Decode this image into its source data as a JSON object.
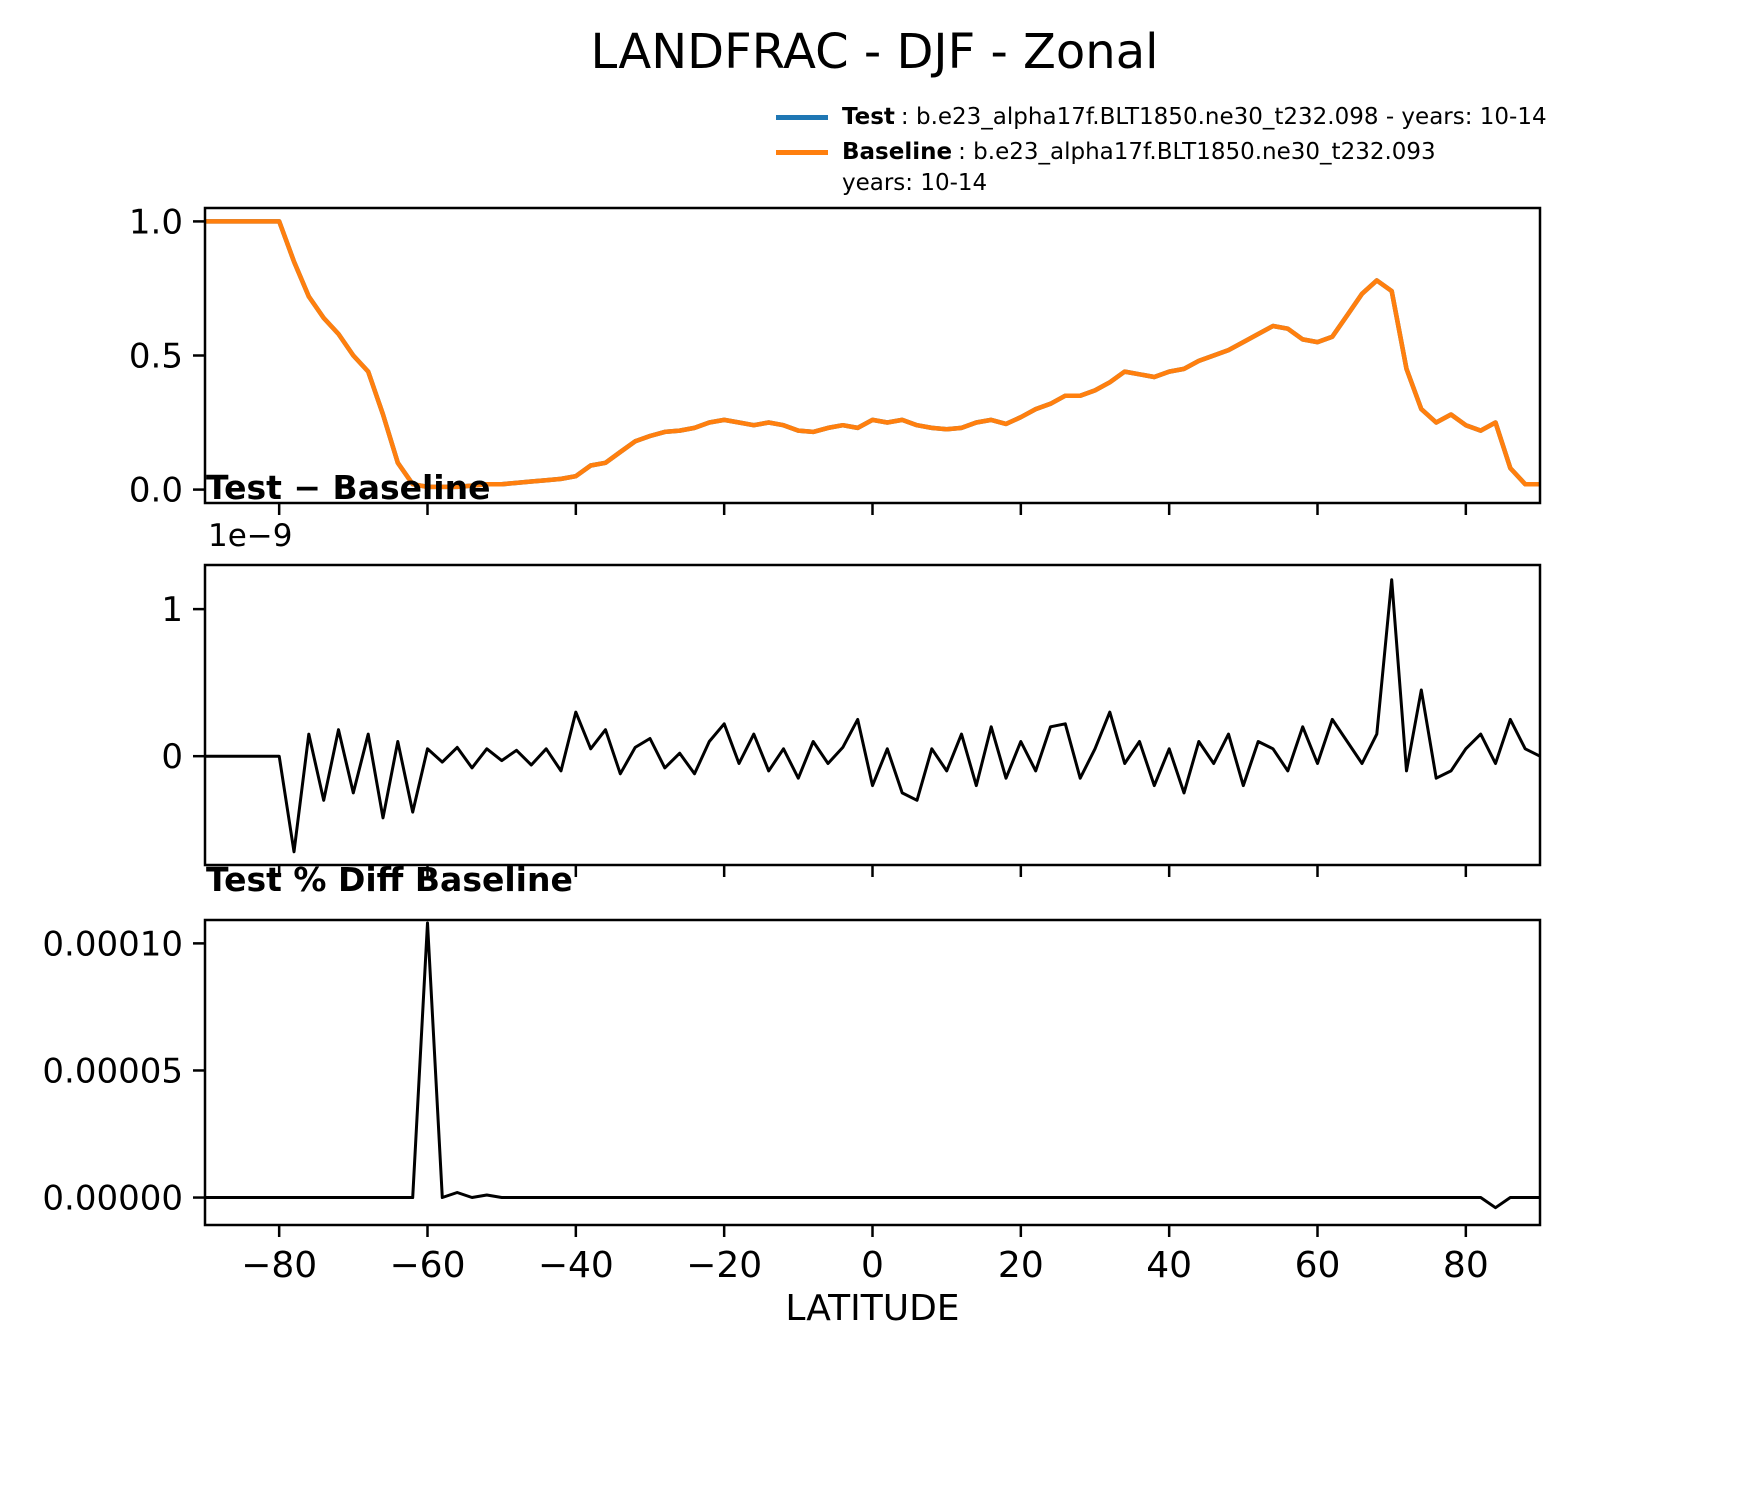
{
  "page": {
    "title": "LANDFRAC - DJF - Zonal"
  },
  "legend": {
    "entries": [
      {
        "name": "Test",
        "text": ": b.e23_alpha17f.BLT1850.ne30_t232.098 - years: 10-14",
        "color": "#1f77b4"
      },
      {
        "name": "Baseline",
        "text": ": b.e23_alpha17f.BLT1850.ne30_t232.093",
        "text2": "years: 10-14",
        "color": "#ff7f0e"
      }
    ]
  },
  "axis": {
    "xlabel": "LATITUDE",
    "xlim": [
      -90,
      90
    ],
    "xticks": [
      -80,
      -60,
      -40,
      -20,
      0,
      20,
      40,
      60,
      80
    ],
    "xtick_labels": [
      "−80",
      "−60",
      "−40",
      "−20",
      "0",
      "20",
      "40",
      "60",
      "80"
    ]
  },
  "chart_data": [
    {
      "id": "zonal-mean",
      "type": "line",
      "title": "",
      "ylim": [
        -0.05,
        1.05
      ],
      "yticks": [
        0,
        0.5,
        1
      ],
      "ytick_labels": [
        "0.0",
        "0.5",
        "1.0"
      ],
      "lat": [
        -90,
        -88,
        -86,
        -84,
        -82,
        -80,
        -78,
        -76,
        -74,
        -72,
        -70,
        -68,
        -66,
        -64,
        -62,
        -60,
        -58,
        -56,
        -54,
        -52,
        -50,
        -48,
        -46,
        -44,
        -42,
        -40,
        -38,
        -36,
        -34,
        -32,
        -30,
        -28,
        -26,
        -24,
        -22,
        -20,
        -18,
        -16,
        -14,
        -12,
        -10,
        -8,
        -6,
        -4,
        -2,
        0,
        2,
        4,
        6,
        8,
        10,
        12,
        14,
        16,
        18,
        20,
        22,
        24,
        26,
        28,
        30,
        32,
        34,
        36,
        38,
        40,
        42,
        44,
        46,
        48,
        50,
        52,
        54,
        56,
        58,
        60,
        62,
        64,
        66,
        68,
        70,
        72,
        74,
        76,
        78,
        80,
        82,
        84,
        86,
        88,
        90
      ],
      "values": [
        1.0,
        1.0,
        1.0,
        1.0,
        1.0,
        1.0,
        0.85,
        0.72,
        0.64,
        0.58,
        0.5,
        0.44,
        0.28,
        0.1,
        0.02,
        0.01,
        0.01,
        0.01,
        0.015,
        0.02,
        0.02,
        0.025,
        0.03,
        0.035,
        0.04,
        0.05,
        0.09,
        0.1,
        0.14,
        0.18,
        0.2,
        0.215,
        0.22,
        0.23,
        0.25,
        0.26,
        0.25,
        0.24,
        0.25,
        0.24,
        0.22,
        0.215,
        0.23,
        0.24,
        0.23,
        0.26,
        0.25,
        0.26,
        0.24,
        0.23,
        0.225,
        0.23,
        0.25,
        0.26,
        0.245,
        0.27,
        0.3,
        0.32,
        0.35,
        0.35,
        0.37,
        0.4,
        0.44,
        0.43,
        0.42,
        0.44,
        0.45,
        0.48,
        0.5,
        0.52,
        0.55,
        0.58,
        0.61,
        0.6,
        0.56,
        0.55,
        0.57,
        0.65,
        0.73,
        0.78,
        0.74,
        0.45,
        0.3,
        0.25,
        0.28,
        0.24,
        0.22,
        0.25,
        0.08,
        0.02,
        0.02
      ],
      "series": [
        {
          "name": "Test",
          "color": "#1f77b4",
          "linewidth": 4.5
        },
        {
          "name": "Baseline",
          "color": "#ff7f0e",
          "linewidth": 4.5
        }
      ]
    },
    {
      "id": "test-minus-baseline",
      "type": "line",
      "title": "Test − Baseline",
      "offset_label": "1e−9",
      "units_scale": 1e-09,
      "ylim": [
        -0.74,
        1.3
      ],
      "yticks": [
        0,
        1
      ],
      "ytick_labels": [
        "0",
        "1"
      ],
      "lat": [
        -90,
        -88,
        -86,
        -84,
        -82,
        -80,
        -78,
        -76,
        -74,
        -72,
        -70,
        -68,
        -66,
        -64,
        -62,
        -60,
        -58,
        -56,
        -54,
        -52,
        -50,
        -48,
        -46,
        -44,
        -42,
        -40,
        -38,
        -36,
        -34,
        -32,
        -30,
        -28,
        -26,
        -24,
        -22,
        -20,
        -18,
        -16,
        -14,
        -12,
        -10,
        -8,
        -6,
        -4,
        -2,
        0,
        2,
        4,
        6,
        8,
        10,
        12,
        14,
        16,
        18,
        20,
        22,
        24,
        26,
        28,
        30,
        32,
        34,
        36,
        38,
        40,
        42,
        44,
        46,
        48,
        50,
        52,
        54,
        56,
        58,
        60,
        62,
        64,
        66,
        68,
        70,
        72,
        74,
        76,
        78,
        80,
        82,
        84,
        86,
        88,
        90
      ],
      "values": [
        0,
        0,
        0,
        0,
        0,
        0,
        -0.65,
        0.15,
        -0.3,
        0.18,
        -0.25,
        0.15,
        -0.42,
        0.1,
        -0.38,
        0.05,
        -0.04,
        0.06,
        -0.08,
        0.05,
        -0.03,
        0.04,
        -0.06,
        0.05,
        -0.1,
        0.3,
        0.05,
        0.18,
        -0.12,
        0.06,
        0.12,
        -0.08,
        0.02,
        -0.12,
        0.1,
        0.22,
        -0.05,
        0.15,
        -0.1,
        0.05,
        -0.15,
        0.1,
        -0.05,
        0.06,
        0.25,
        -0.2,
        0.05,
        -0.25,
        -0.3,
        0.05,
        -0.1,
        0.15,
        -0.2,
        0.2,
        -0.15,
        0.1,
        -0.1,
        0.2,
        0.22,
        -0.15,
        0.05,
        0.3,
        -0.05,
        0.1,
        -0.2,
        0.05,
        -0.25,
        0.1,
        -0.05,
        0.15,
        -0.2,
        0.1,
        0.05,
        -0.1,
        0.2,
        -0.05,
        0.25,
        0.1,
        -0.05,
        0.15,
        1.2,
        -0.1,
        0.45,
        -0.15,
        -0.1,
        0.05,
        0.15,
        -0.05,
        0.25,
        0.05,
        0
      ],
      "series": [
        {
          "name": "Test minus Baseline",
          "color": "#000000",
          "linewidth": 3
        }
      ]
    },
    {
      "id": "test-pct-diff-baseline",
      "type": "line",
      "title": "Test % Diff Baseline",
      "ylim": [
        -1.08e-05,
        0.0001092
      ],
      "yticks": [
        0,
        5e-05,
        0.0001
      ],
      "ytick_labels": [
        "0.00000",
        "0.00005",
        "0.00010"
      ],
      "lat": [
        -90,
        -88,
        -86,
        -84,
        -82,
        -80,
        -78,
        -76,
        -74,
        -72,
        -70,
        -68,
        -66,
        -64,
        -62,
        -60,
        -58,
        -56,
        -54,
        -52,
        -50,
        -48,
        -46,
        -44,
        -42,
        -40,
        -38,
        -36,
        -34,
        -32,
        -30,
        -28,
        -26,
        -24,
        -22,
        -20,
        -18,
        -16,
        -14,
        -12,
        -10,
        -8,
        -6,
        -4,
        -2,
        0,
        2,
        4,
        6,
        8,
        10,
        12,
        14,
        16,
        18,
        20,
        22,
        24,
        26,
        28,
        30,
        32,
        34,
        36,
        38,
        40,
        42,
        44,
        46,
        48,
        50,
        52,
        54,
        56,
        58,
        60,
        62,
        64,
        66,
        68,
        70,
        72,
        74,
        76,
        78,
        80,
        82,
        84,
        86,
        88,
        90
      ],
      "values": [
        0,
        0,
        0,
        0,
        0,
        0,
        0,
        0,
        0,
        0,
        0,
        0,
        0,
        0,
        0,
        0.000108,
        0,
        2e-06,
        0,
        1e-06,
        0,
        0,
        0,
        0,
        0,
        0,
        0,
        0,
        0,
        0,
        0,
        0,
        0,
        0,
        0,
        0,
        0,
        0,
        0,
        0,
        0,
        0,
        0,
        0,
        0,
        0,
        0,
        0,
        0,
        0,
        0,
        0,
        0,
        0,
        0,
        0,
        0,
        0,
        0,
        0,
        0,
        0,
        0,
        0,
        0,
        0,
        0,
        0,
        0,
        0,
        0,
        0,
        0,
        0,
        0,
        0,
        0,
        0,
        0,
        0,
        0,
        0,
        0,
        0,
        0,
        0,
        0,
        -4e-06,
        0,
        0,
        0
      ],
      "series": [
        {
          "name": "Test % Diff Baseline",
          "color": "#000000",
          "linewidth": 3
        }
      ]
    }
  ]
}
